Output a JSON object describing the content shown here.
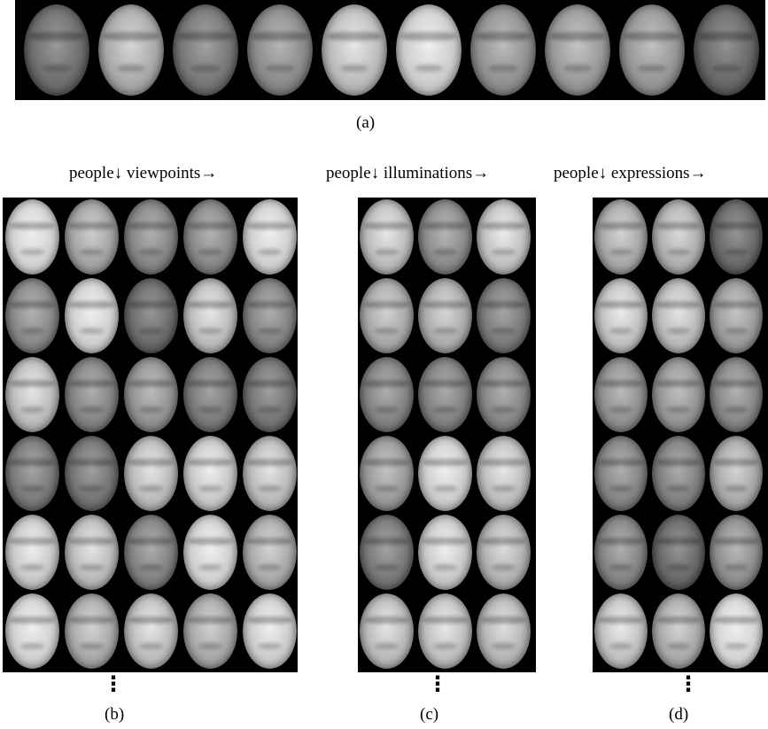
{
  "figure": {
    "caption_a": "(a)",
    "header_b": "people↓ viewpoints→",
    "header_c": "people↓ illuminations→",
    "header_d": "people↓ expressions→",
    "caption_b": "(b)",
    "caption_c": "(c)",
    "caption_d": "(d)",
    "continuation": "⋮"
  },
  "panels": {
    "a": {
      "rows": 1,
      "cols": 10
    },
    "b": {
      "rows": 6,
      "cols": 5
    },
    "c": {
      "rows": 6,
      "cols": 3
    },
    "d": {
      "rows": 6,
      "cols": 3
    }
  }
}
